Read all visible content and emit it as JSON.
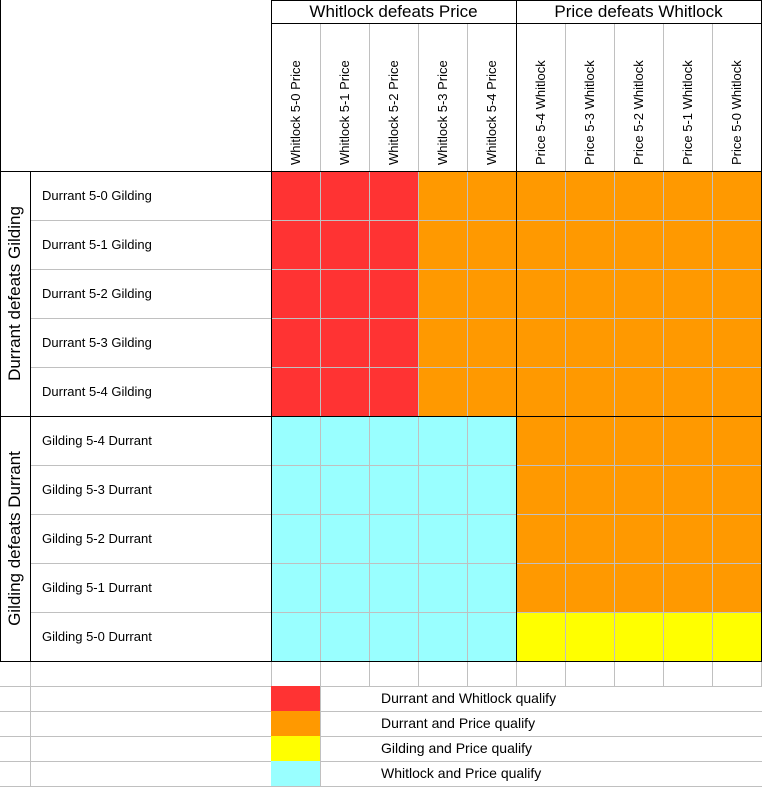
{
  "header": {
    "col_groups": [
      "Whitlock defeats Price",
      "Price defeats Whitlock"
    ],
    "col_labels": [
      "Whitlock 5-0 Price",
      "Whitlock 5-1 Price",
      "Whitlock 5-2 Price",
      "Whitlock 5-3 Price",
      "Whitlock 5-4 Price",
      "Price 5-4 Whitlock",
      "Price 5-3 Whitlock",
      "Price 5-2 Whitlock",
      "Price 5-1 Whitlock",
      "Price 5-0 Whitlock"
    ]
  },
  "rows": {
    "row_groups": [
      "Durrant defeats Gilding",
      "Gilding defeats Durrant"
    ],
    "row_labels": [
      "Durrant 5-0 Gilding",
      "Durrant 5-1 Gilding",
      "Durrant 5-2 Gilding",
      "Durrant 5-3 Gilding",
      "Durrant 5-4 Gilding",
      "Gilding 5-4 Durrant",
      "Gilding 5-3 Durrant",
      "Gilding 5-2 Durrant",
      "Gilding 5-1 Durrant",
      "Gilding 5-0 Durrant"
    ]
  },
  "outcomes": [
    [
      "red",
      "red",
      "red",
      "orange",
      "orange",
      "orange",
      "orange",
      "orange",
      "orange",
      "orange"
    ],
    [
      "red",
      "red",
      "red",
      "orange",
      "orange",
      "orange",
      "orange",
      "orange",
      "orange",
      "orange"
    ],
    [
      "red",
      "red",
      "red",
      "orange",
      "orange",
      "orange",
      "orange",
      "orange",
      "orange",
      "orange"
    ],
    [
      "red",
      "red",
      "red",
      "orange",
      "orange",
      "orange",
      "orange",
      "orange",
      "orange",
      "orange"
    ],
    [
      "red",
      "red",
      "red",
      "orange",
      "orange",
      "orange",
      "orange",
      "orange",
      "orange",
      "orange"
    ],
    [
      "cyan",
      "cyan",
      "cyan",
      "cyan",
      "cyan",
      "orange",
      "orange",
      "orange",
      "orange",
      "orange"
    ],
    [
      "cyan",
      "cyan",
      "cyan",
      "cyan",
      "cyan",
      "orange",
      "orange",
      "orange",
      "orange",
      "orange"
    ],
    [
      "cyan",
      "cyan",
      "cyan",
      "cyan",
      "cyan",
      "orange",
      "orange",
      "orange",
      "orange",
      "orange"
    ],
    [
      "cyan",
      "cyan",
      "cyan",
      "cyan",
      "cyan",
      "orange",
      "orange",
      "orange",
      "orange",
      "orange"
    ],
    [
      "cyan",
      "cyan",
      "cyan",
      "cyan",
      "cyan",
      "yellow",
      "yellow",
      "yellow",
      "yellow",
      "yellow"
    ]
  ],
  "colors": {
    "red": "#ff3333",
    "orange": "#ff9900",
    "yellow": "#ffff00",
    "cyan": "#99ffff",
    "gridline": "#c0c0c0",
    "border": "#000000"
  },
  "legend": [
    {
      "color": "red",
      "label": "Durrant and Whitlock qualify"
    },
    {
      "color": "orange",
      "label": "Durrant and Price qualify"
    },
    {
      "color": "yellow",
      "label": "Gilding and Price qualify"
    },
    {
      "color": "cyan",
      "label": "Whitlock and Price qualify"
    }
  ]
}
